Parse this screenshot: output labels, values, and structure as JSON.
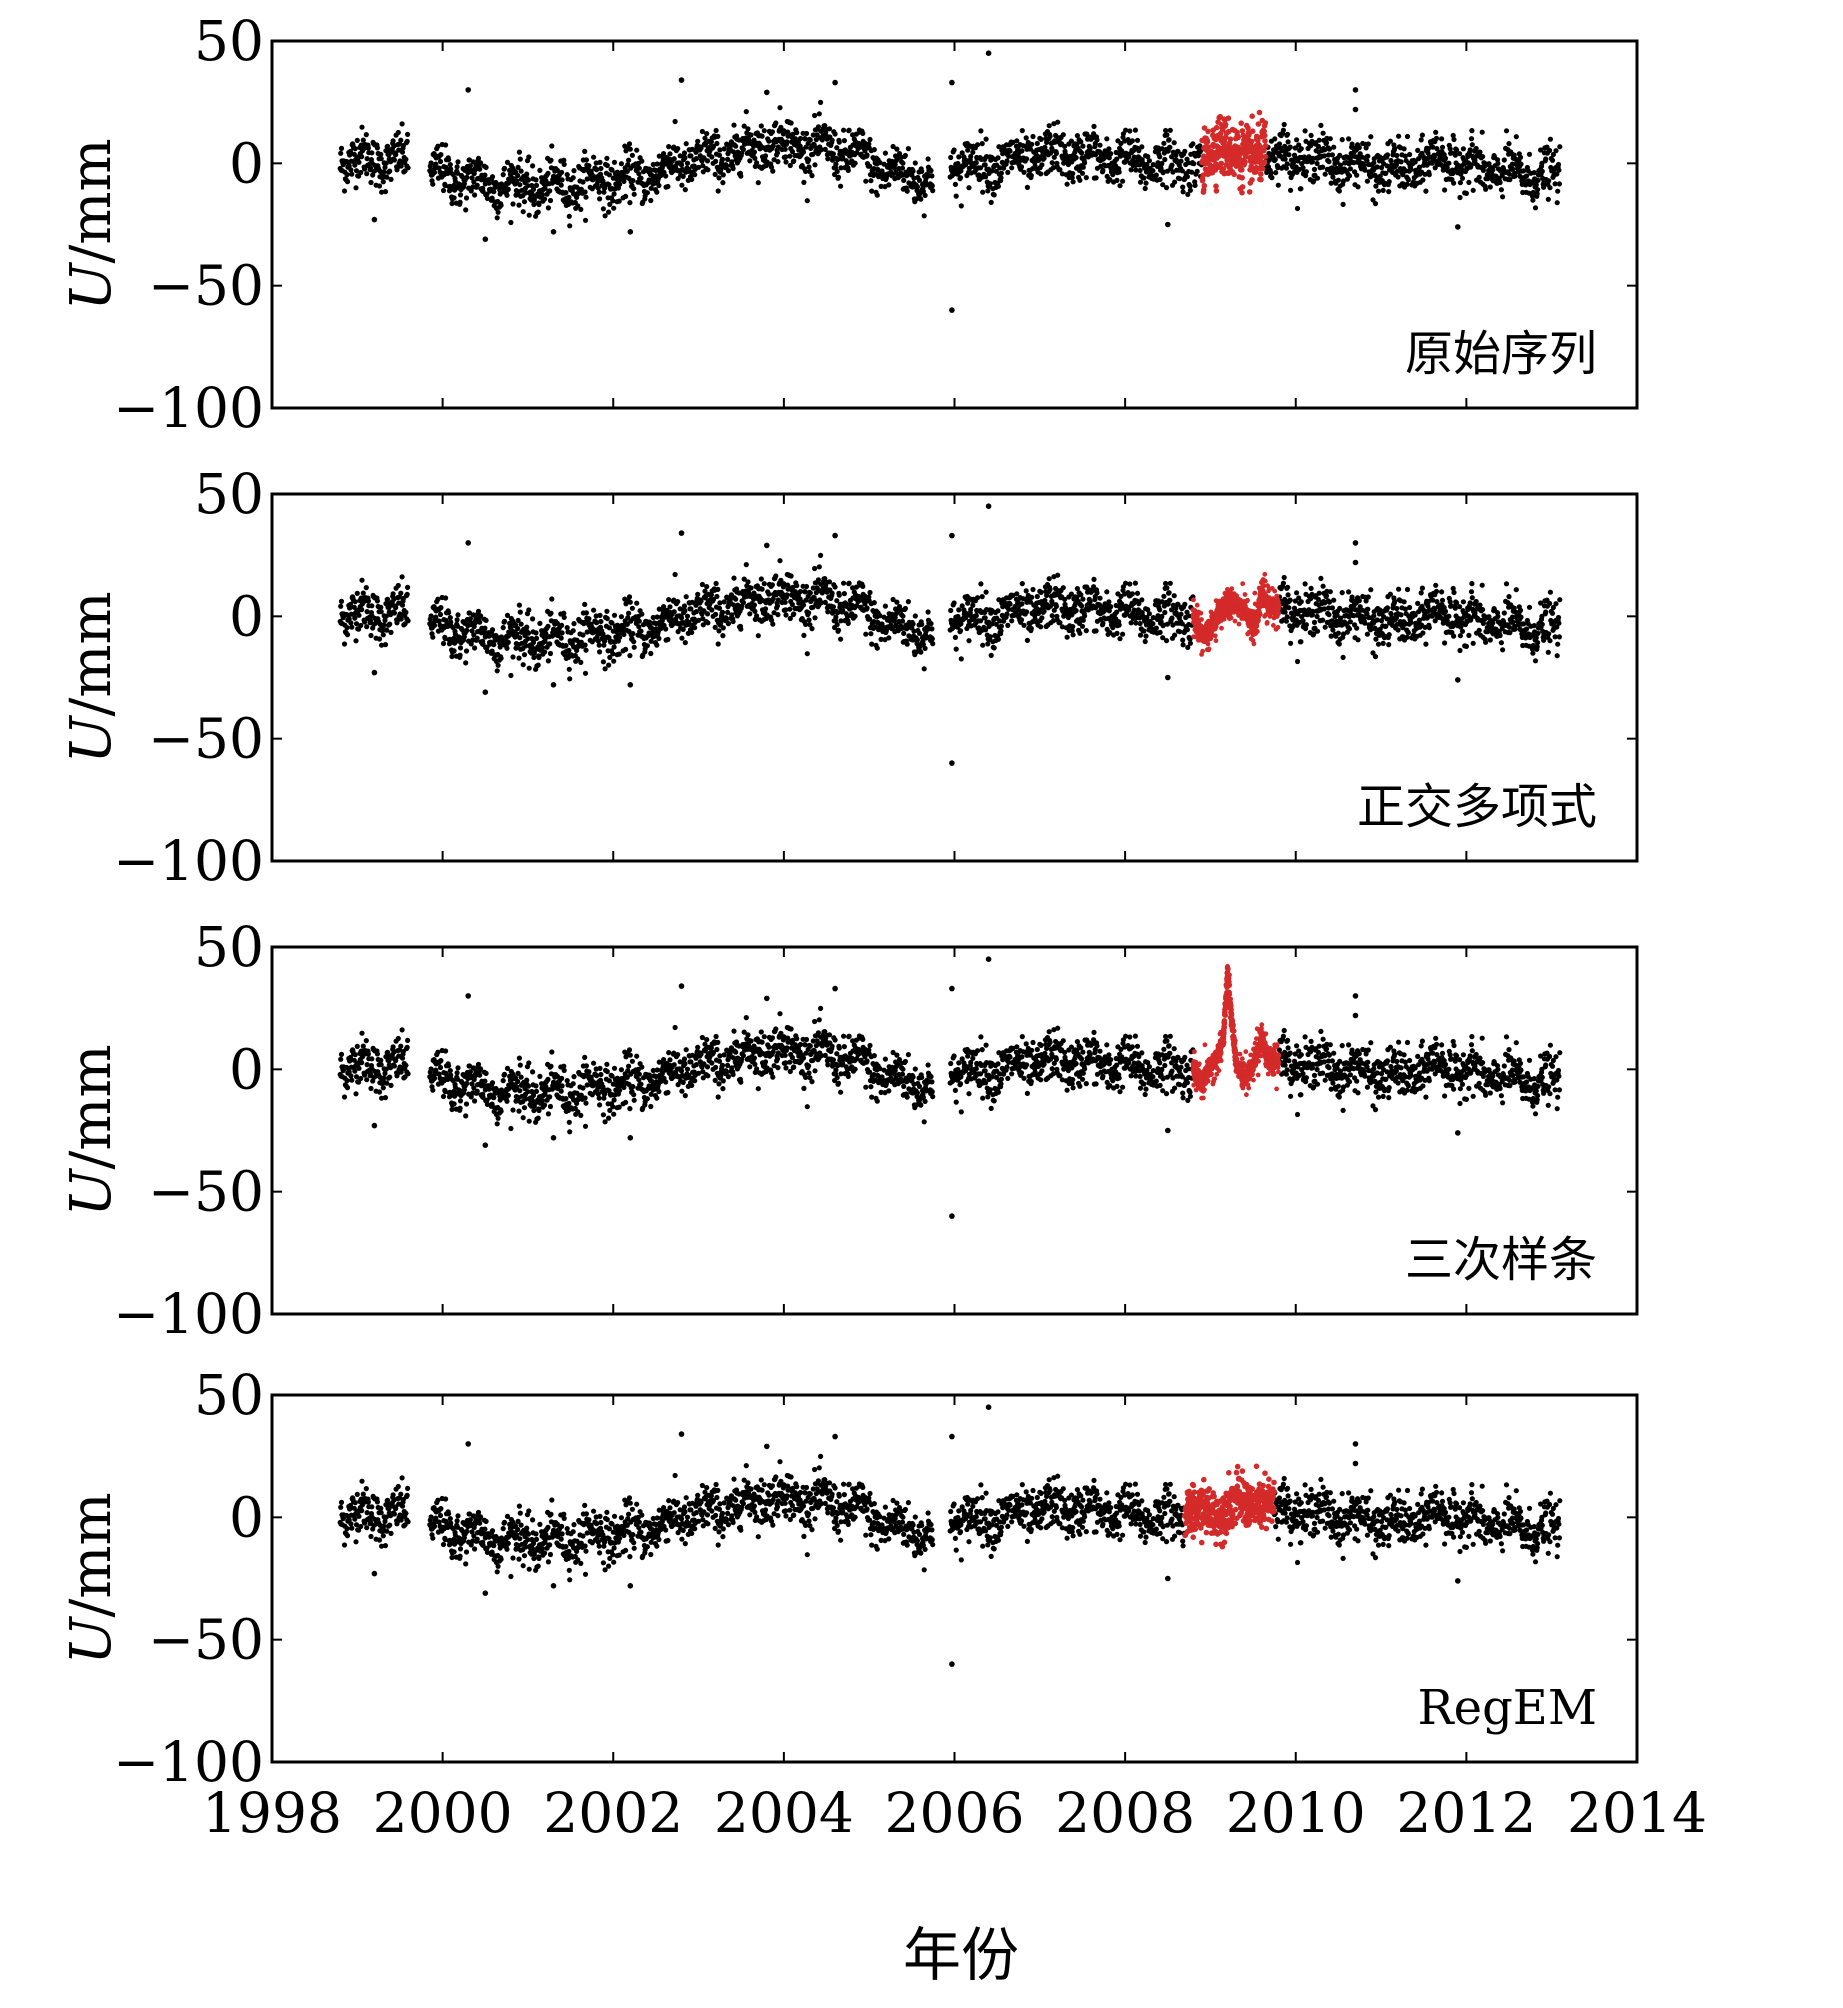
{
  "chart_data": {
    "type": "scatter",
    "xlabel": "年份",
    "ylabel": "U/mm",
    "xlim": [
      1998,
      2014
    ],
    "ylim": [
      -100,
      50
    ],
    "xticks": [
      1998,
      2000,
      2002,
      2004,
      2006,
      2008,
      2010,
      2012,
      2014
    ],
    "yticks": [
      50,
      0,
      -50,
      -100
    ],
    "colors": {
      "observed": "#000000",
      "gap": "#d42a2a"
    },
    "base_series": {
      "name": "observed",
      "x_range": [
        1998.8,
        2013.1
      ],
      "data_gaps": [
        [
          1999.6,
          1999.85
        ],
        [
          2005.75,
          2005.95
        ]
      ],
      "trend": [
        {
          "x": 1998.8,
          "y": 2
        },
        {
          "x": 1999.5,
          "y": 1
        },
        {
          "x": 1999.9,
          "y": -4
        },
        {
          "x": 2000.5,
          "y": -8
        },
        {
          "x": 2001.2,
          "y": -10
        },
        {
          "x": 2001.8,
          "y": -7
        },
        {
          "x": 2002.3,
          "y": -6
        },
        {
          "x": 2002.8,
          "y": 0
        },
        {
          "x": 2003.3,
          "y": 3
        },
        {
          "x": 2003.8,
          "y": 9
        },
        {
          "x": 2004.3,
          "y": 7
        },
        {
          "x": 2004.8,
          "y": 4
        },
        {
          "x": 2005.2,
          "y": -3
        },
        {
          "x": 2005.7,
          "y": -6
        },
        {
          "x": 2006.0,
          "y": -1
        },
        {
          "x": 2006.6,
          "y": 0
        },
        {
          "x": 2007.2,
          "y": 4
        },
        {
          "x": 2007.8,
          "y": 2
        },
        {
          "x": 2008.4,
          "y": 0
        },
        {
          "x": 2008.9,
          "y": 1
        },
        {
          "x": 2009.5,
          "y": 2
        },
        {
          "x": 2010.0,
          "y": 3
        },
        {
          "x": 2010.6,
          "y": 0
        },
        {
          "x": 2011.2,
          "y": -3
        },
        {
          "x": 2011.7,
          "y": 2
        },
        {
          "x": 2012.3,
          "y": -3
        },
        {
          "x": 2013.1,
          "y": -6
        }
      ],
      "scatter_sd_mm": 5,
      "outliers": [
        {
          "x": 2006.4,
          "y": 45
        },
        {
          "x": 2005.97,
          "y": -60
        },
        {
          "x": 2005.97,
          "y": 33
        },
        {
          "x": 2002.8,
          "y": 34
        },
        {
          "x": 2004.6,
          "y": 33
        },
        {
          "x": 2000.3,
          "y": 30
        },
        {
          "x": 2010.7,
          "y": 30
        },
        {
          "x": 2008.5,
          "y": -25
        },
        {
          "x": 2011.9,
          "y": -26
        },
        {
          "x": 2000.5,
          "y": -31
        },
        {
          "x": 1999.2,
          "y": -23
        },
        {
          "x": 2003.8,
          "y": 29
        },
        {
          "x": 2010.7,
          "y": 22
        },
        {
          "x": 2001.3,
          "y": -28
        },
        {
          "x": 2002.2,
          "y": -28
        }
      ]
    },
    "panels": [
      {
        "label": "原始序列",
        "gap_fill": {
          "x_range": [
            2008.9,
            2009.65
          ],
          "model": "noisy",
          "profile": [
            {
              "x": 2008.9,
              "y": 0
            },
            {
              "x": 2009.1,
              "y": 8
            },
            {
              "x": 2009.3,
              "y": 4
            },
            {
              "x": 2009.5,
              "y": 2
            },
            {
              "x": 2009.65,
              "y": 6
            }
          ],
          "noise_mm": 6
        }
      },
      {
        "label": "正交多项式",
        "gap_fill": {
          "x_range": [
            2008.8,
            2009.8
          ],
          "model": "curve",
          "profile": [
            {
              "x": 2008.8,
              "y": 0
            },
            {
              "x": 2008.9,
              "y": -8
            },
            {
              "x": 2009.0,
              "y": -5
            },
            {
              "x": 2009.1,
              "y": 2
            },
            {
              "x": 2009.2,
              "y": 5
            },
            {
              "x": 2009.3,
              "y": 5
            },
            {
              "x": 2009.4,
              "y": 3
            },
            {
              "x": 2009.5,
              "y": -4
            },
            {
              "x": 2009.55,
              "y": 0
            },
            {
              "x": 2009.6,
              "y": 10
            },
            {
              "x": 2009.7,
              "y": 3
            },
            {
              "x": 2009.8,
              "y": 4
            }
          ],
          "noise_mm": 4
        }
      },
      {
        "label": "三次样条",
        "gap_fill": {
          "x_range": [
            2008.8,
            2009.8
          ],
          "model": "curve",
          "profile": [
            {
              "x": 2008.8,
              "y": 0
            },
            {
              "x": 2008.9,
              "y": -6
            },
            {
              "x": 2009.0,
              "y": 2
            },
            {
              "x": 2009.08,
              "y": 5
            },
            {
              "x": 2009.15,
              "y": 12
            },
            {
              "x": 2009.2,
              "y": 40
            },
            {
              "x": 2009.25,
              "y": 20
            },
            {
              "x": 2009.3,
              "y": 2
            },
            {
              "x": 2009.4,
              "y": -4
            },
            {
              "x": 2009.5,
              "y": 2
            },
            {
              "x": 2009.6,
              "y": 12
            },
            {
              "x": 2009.7,
              "y": 3
            },
            {
              "x": 2009.8,
              "y": 5
            }
          ],
          "noise_mm": 4
        }
      },
      {
        "label": "RegEM",
        "gap_fill": {
          "x_range": [
            2008.7,
            2009.75
          ],
          "model": "noisy",
          "profile": [
            {
              "x": 2008.7,
              "y": 0
            },
            {
              "x": 2008.9,
              "y": 4
            },
            {
              "x": 2009.1,
              "y": 0
            },
            {
              "x": 2009.3,
              "y": 8
            },
            {
              "x": 2009.5,
              "y": 4
            },
            {
              "x": 2009.75,
              "y": 6
            }
          ],
          "noise_mm": 5
        }
      }
    ]
  }
}
